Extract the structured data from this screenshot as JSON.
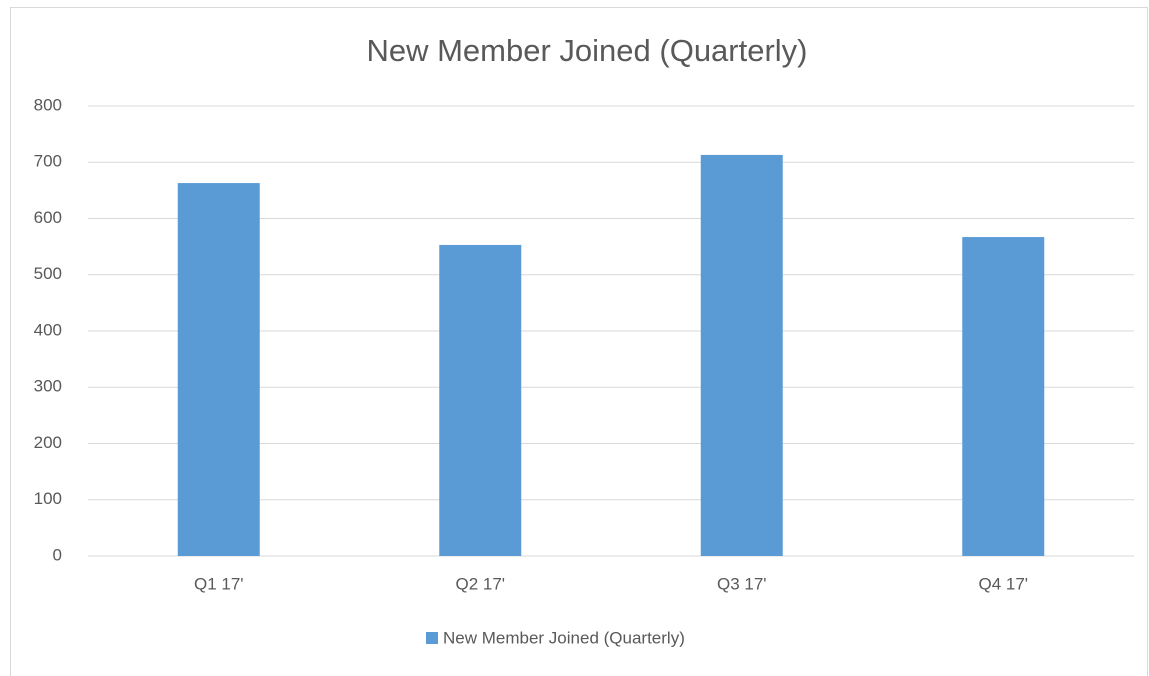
{
  "chart_data": {
    "type": "bar",
    "title": "New Member Joined (Quarterly)",
    "categories": [
      "Q1 17'",
      "Q2 17'",
      "Q3 17'",
      "Q4 17'"
    ],
    "series": [
      {
        "name": "New Member Joined (Quarterly)",
        "color": "#5b9bd5",
        "values": [
          663,
          553,
          713,
          567
        ]
      }
    ],
    "ylim": [
      0,
      800
    ],
    "yticks": [
      0,
      100,
      200,
      300,
      400,
      500,
      600,
      700,
      800
    ],
    "grid": true,
    "legend": "bottom"
  }
}
